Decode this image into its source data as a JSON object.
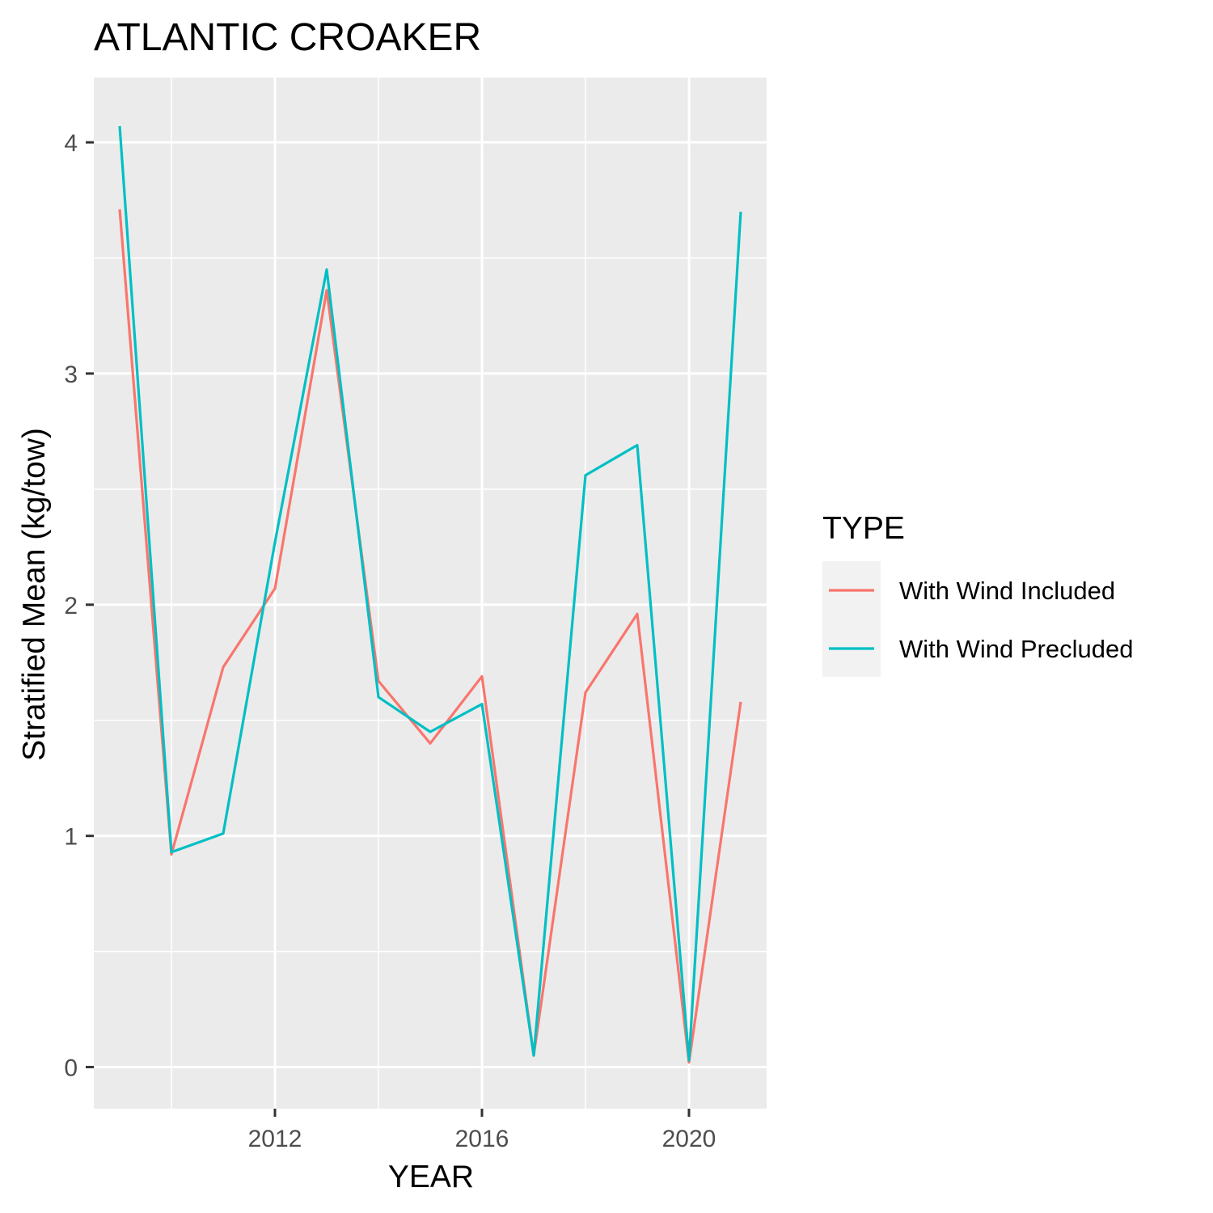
{
  "chart_data": {
    "type": "line",
    "title": "ATLANTIC CROAKER",
    "xlabel": "YEAR",
    "ylabel": "Stratified Mean (kg/tow)",
    "x": [
      2009,
      2010,
      2011,
      2012,
      2013,
      2014,
      2015,
      2016,
      2017,
      2018,
      2019,
      2020,
      2021
    ],
    "series": [
      {
        "name": "With Wind Included",
        "color": "#F8766D",
        "values": [
          3.71,
          0.92,
          1.73,
          2.07,
          3.36,
          1.67,
          1.4,
          1.69,
          0.05,
          1.62,
          1.96,
          0.02,
          1.58
        ]
      },
      {
        "name": "With Wind Precluded",
        "color": "#00BFC4",
        "values": [
          4.07,
          0.93,
          1.01,
          2.27,
          3.45,
          1.6,
          1.45,
          1.57,
          0.05,
          2.56,
          2.69,
          0.03,
          3.7
        ]
      }
    ],
    "xlim": [
      2008.5,
      2021.5
    ],
    "ylim": [
      -0.18,
      4.28
    ],
    "xticks": [
      2012,
      2016,
      2020
    ],
    "xtick_labels": [
      "2012",
      "2016",
      "2020"
    ],
    "yticks": [
      0,
      1,
      2,
      3,
      4
    ],
    "ytick_labels": [
      "0",
      "1",
      "2",
      "3",
      "4"
    ],
    "grid": true,
    "legend": {
      "title": "TYPE",
      "position": "right"
    },
    "panel_background": "#EBEBEB",
    "grid_color": "#FFFFFF"
  }
}
